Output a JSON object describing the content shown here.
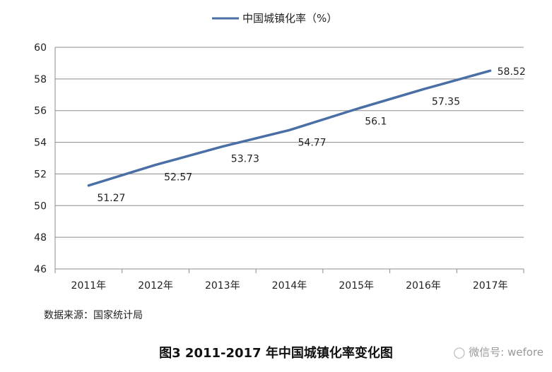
{
  "chart_data": {
    "type": "line",
    "legend": "中国城镇化率（%）",
    "legend_position": "top",
    "categories": [
      "2011年",
      "2012年",
      "2013年",
      "2014年",
      "2015年",
      "2016年",
      "2017年"
    ],
    "series": [
      {
        "name": "中国城镇化率（%）",
        "values": [
          51.27,
          52.57,
          53.73,
          54.77,
          56.1,
          57.35,
          58.52
        ]
      }
    ],
    "data_labels": [
      "51.27",
      "52.57",
      "53.73",
      "54.77",
      "56.1",
      "57.35",
      "58.52"
    ],
    "ylim": [
      46,
      60
    ],
    "yticks": [
      46,
      48,
      50,
      52,
      54,
      56,
      58,
      60
    ],
    "grid": true,
    "line_color": "#4a6fa5"
  },
  "source": "数据来源：国家统计局",
  "caption": "图3  2011-2017 年中国城镇化率变化图",
  "watermark": {
    "icon": "wechat-icon",
    "text": "微信号: wefore"
  }
}
